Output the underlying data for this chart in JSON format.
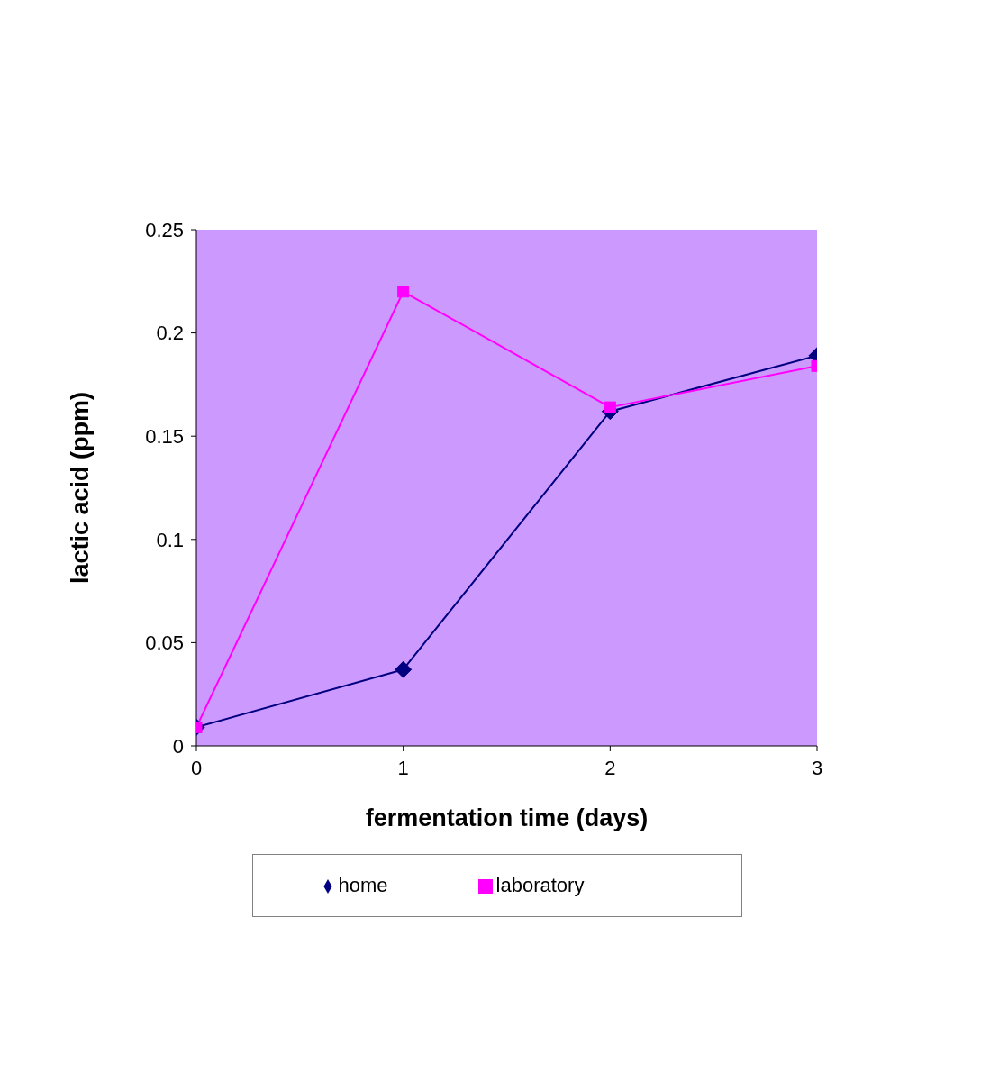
{
  "chart_data": {
    "type": "line",
    "xlabel": "fermentation time (days)",
    "ylabel": "lactic acid (ppm)",
    "x": [
      0,
      1,
      2,
      3
    ],
    "series": [
      {
        "name": "home",
        "color": "#000080",
        "marker": "diamond",
        "values": [
          0.009,
          0.037,
          0.162,
          0.189
        ]
      },
      {
        "name": "laboratory",
        "color": "#ff00ff",
        "marker": "square",
        "values": [
          0.009,
          0.22,
          0.164,
          0.184
        ]
      }
    ],
    "xlim": [
      0,
      3
    ],
    "xticks": [
      0,
      1,
      2,
      3
    ],
    "ylim": [
      0,
      0.25
    ],
    "yticks": [
      0,
      0.05,
      0.1,
      0.15,
      0.2,
      0.25
    ],
    "grid": false,
    "legend": "bottom",
    "line_style": "solid"
  }
}
